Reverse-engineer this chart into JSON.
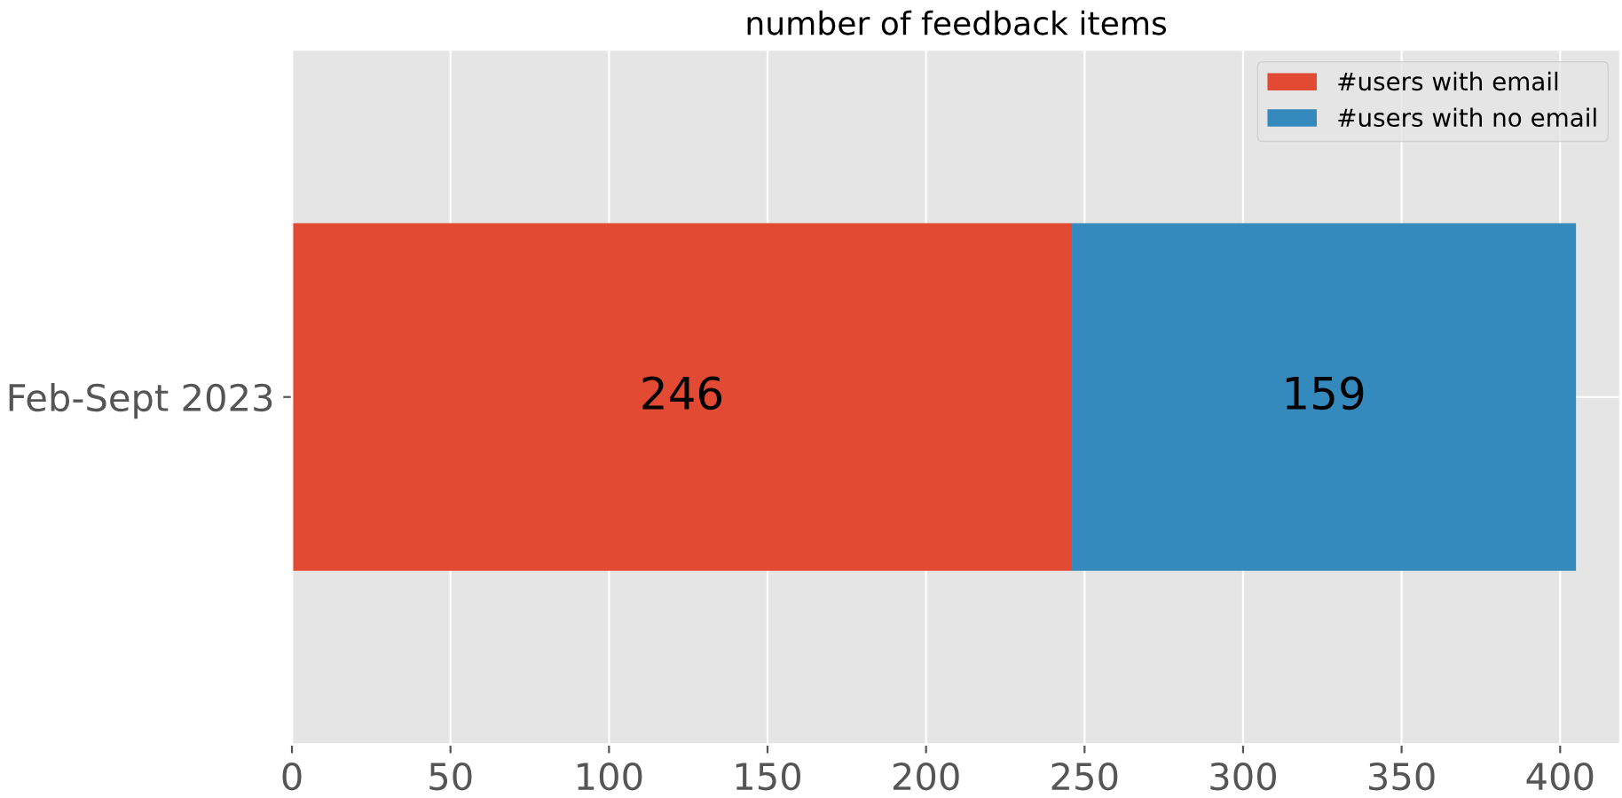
{
  "chart_data": {
    "type": "bar",
    "orientation": "horizontal",
    "stacked": true,
    "title": "number of feedback items",
    "categories": [
      "Feb-Sept 2023"
    ],
    "series": [
      {
        "name": "#users with email",
        "color": "#e24a33",
        "values": [
          246
        ]
      },
      {
        "name": "#users with no email",
        "color": "#348abd",
        "values": [
          159
        ]
      }
    ],
    "xlim": [
      0,
      419
    ],
    "xticks": [
      0,
      50,
      100,
      150,
      200,
      250,
      300,
      350,
      400
    ],
    "grid": true,
    "legend": "top right",
    "data_labels": true
  }
}
